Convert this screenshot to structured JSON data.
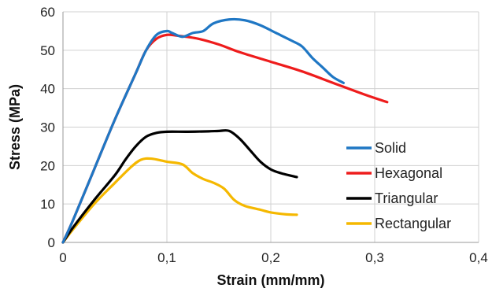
{
  "chart_data": {
    "type": "line",
    "title": "",
    "xlabel": "Strain (mm/mm)",
    "ylabel": "Stress (MPa)",
    "xlim": [
      0,
      0.4
    ],
    "ylim": [
      0,
      60
    ],
    "x_ticks": [
      0,
      0.1,
      0.2,
      0.3,
      0.4
    ],
    "x_tick_labels": [
      "0",
      "0,1",
      "0,2",
      "0,3",
      "0,4"
    ],
    "y_ticks": [
      0,
      10,
      20,
      30,
      40,
      50,
      60
    ],
    "y_tick_labels": [
      "0",
      "10",
      "20",
      "30",
      "40",
      "50",
      "60"
    ],
    "grid": true,
    "legend_position": "right",
    "series": [
      {
        "name": "Solid",
        "color": "#1f77c4",
        "points": [
          [
            0,
            0
          ],
          [
            0.01,
            6
          ],
          [
            0.03,
            19
          ],
          [
            0.05,
            32
          ],
          [
            0.07,
            44
          ],
          [
            0.08,
            50
          ],
          [
            0.09,
            54
          ],
          [
            0.1,
            55
          ],
          [
            0.105,
            54.5
          ],
          [
            0.115,
            53.5
          ],
          [
            0.125,
            54.5
          ],
          [
            0.135,
            55
          ],
          [
            0.145,
            57
          ],
          [
            0.16,
            58
          ],
          [
            0.175,
            57.8
          ],
          [
            0.19,
            56.5
          ],
          [
            0.205,
            54.5
          ],
          [
            0.22,
            52.5
          ],
          [
            0.23,
            51
          ],
          [
            0.24,
            48
          ],
          [
            0.25,
            45.5
          ],
          [
            0.26,
            43
          ],
          [
            0.27,
            41.5
          ]
        ]
      },
      {
        "name": "Hexagonal",
        "color": "#ee1c1c",
        "points": [
          [
            0,
            0
          ],
          [
            0.01,
            6
          ],
          [
            0.03,
            19
          ],
          [
            0.05,
            32
          ],
          [
            0.07,
            44
          ],
          [
            0.08,
            50
          ],
          [
            0.09,
            53
          ],
          [
            0.1,
            54
          ],
          [
            0.11,
            53.8
          ],
          [
            0.13,
            53
          ],
          [
            0.15,
            51.5
          ],
          [
            0.17,
            49.5
          ],
          [
            0.2,
            47
          ],
          [
            0.23,
            44.5
          ],
          [
            0.26,
            41.5
          ],
          [
            0.29,
            38.5
          ],
          [
            0.312,
            36.5
          ]
        ]
      },
      {
        "name": "Triangular",
        "color": "#000000",
        "points": [
          [
            0,
            0
          ],
          [
            0.01,
            4
          ],
          [
            0.03,
            11
          ],
          [
            0.05,
            17.5
          ],
          [
            0.06,
            21.5
          ],
          [
            0.07,
            25
          ],
          [
            0.08,
            27.5
          ],
          [
            0.09,
            28.5
          ],
          [
            0.1,
            28.8
          ],
          [
            0.12,
            28.8
          ],
          [
            0.14,
            28.9
          ],
          [
            0.15,
            29
          ],
          [
            0.16,
            29
          ],
          [
            0.17,
            27
          ],
          [
            0.18,
            24
          ],
          [
            0.19,
            21
          ],
          [
            0.2,
            19
          ],
          [
            0.21,
            18
          ],
          [
            0.225,
            17
          ]
        ]
      },
      {
        "name": "Rectangular",
        "color": "#f5b800",
        "points": [
          [
            0,
            0
          ],
          [
            0.01,
            3.5
          ],
          [
            0.03,
            10
          ],
          [
            0.05,
            15.5
          ],
          [
            0.065,
            19.5
          ],
          [
            0.075,
            21.5
          ],
          [
            0.085,
            21.8
          ],
          [
            0.1,
            21
          ],
          [
            0.115,
            20.3
          ],
          [
            0.125,
            18
          ],
          [
            0.135,
            16.5
          ],
          [
            0.145,
            15.5
          ],
          [
            0.155,
            14
          ],
          [
            0.165,
            11
          ],
          [
            0.175,
            9.5
          ],
          [
            0.19,
            8.5
          ],
          [
            0.2,
            7.8
          ],
          [
            0.215,
            7.3
          ],
          [
            0.225,
            7.2
          ]
        ]
      }
    ]
  }
}
